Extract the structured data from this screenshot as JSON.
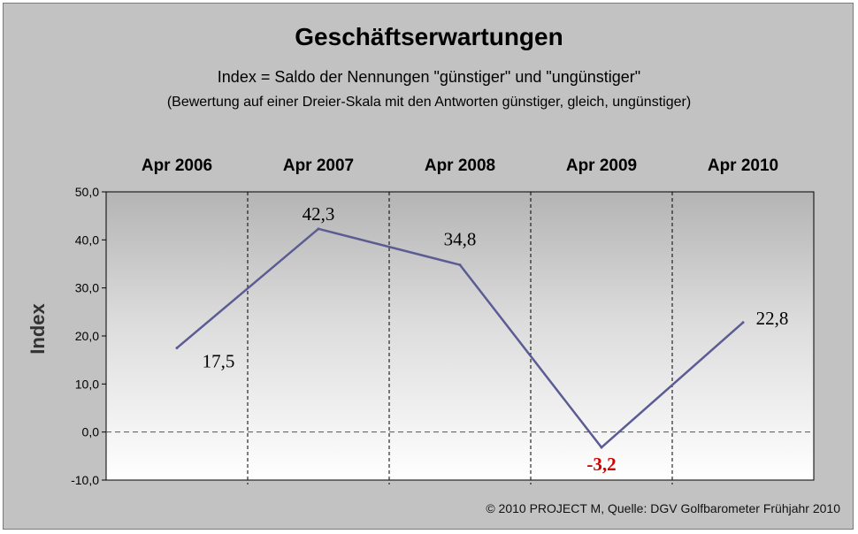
{
  "chart_data": {
    "type": "line",
    "title": "Geschäftserwartungen",
    "subtitle": "Index = Saldo der Nennungen \"günstiger\" und \"ungünstiger\"",
    "note": "(Bewertung auf einer Dreier-Skala mit den Antworten günstiger, gleich, ungünstiger)",
    "ylabel": "Index",
    "categories": [
      "Apr 2006",
      "Apr 2007",
      "Apr 2008",
      "Apr 2009",
      "Apr 2010"
    ],
    "series": [
      {
        "values": [
          17.5,
          42.3,
          34.8,
          -3.2,
          22.8
        ]
      }
    ],
    "data_labels": [
      "17,5",
      "42,3",
      "34,8",
      "-3,2",
      "22,8"
    ],
    "ylim": [
      -10,
      50
    ],
    "yticks": [
      -10,
      0,
      10,
      20,
      30,
      40,
      50
    ],
    "ytick_labels": [
      "-10,0",
      "0,0",
      "10,0",
      "20,0",
      "30,0",
      "40,0",
      "50,0"
    ],
    "grid": "vertical dashed category separators; dashed zero line",
    "legend": "none",
    "colors": {
      "line": "#5c5c94",
      "negative_label": "#cc0000",
      "label": "#000000",
      "background": "#c2c2c2"
    }
  },
  "footer": {
    "source": "© 2010 PROJECT M, Quelle: DGV Golfbarometer Frühjahr 2010"
  }
}
